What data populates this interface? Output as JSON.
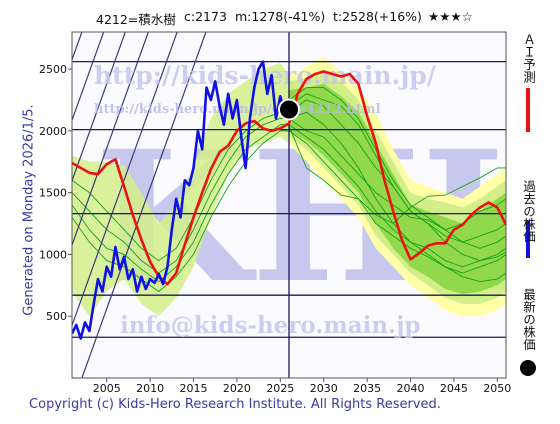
{
  "header": {
    "code": "4212=積水樹",
    "current": "c:2173",
    "min": "m:1278(-41%)",
    "target": "t:2528(+16%)",
    "stars": "★★★☆"
  },
  "generated": "Generated on Monday 2026/1/5.",
  "footer": "Copyright (c) Kids-Hero Research Institute. All Rights Reserved.",
  "watermarks": {
    "url": "http://kids-hero.main.jp/",
    "page": "http://kids-hero.main.jp/code4212.html",
    "email": "info@kids-hero.main.jp",
    "logo": "KHI"
  },
  "legend": [
    {
      "label": "ＡＩ予測",
      "kind": "line",
      "color": "#ee1111"
    },
    {
      "label": "過去の株価",
      "kind": "line",
      "color": "#1111ee"
    },
    {
      "label": "最新の株価",
      "kind": "dot",
      "color": "#000000"
    }
  ],
  "colors": {
    "ai": "#ee1111",
    "past": "#1010e8",
    "band_outer": "#ffffa8",
    "band_mid": "#d2ee88",
    "band_inner": "#92d84c",
    "projection": "#15a215",
    "grid": "#1a1a5e",
    "trend": "#3a3a7a"
  },
  "chart_data": {
    "type": "line",
    "xlim": [
      2001,
      2051
    ],
    "ylim": [
      0,
      2800
    ],
    "x_ticks": [
      2005,
      2010,
      2015,
      2020,
      2025,
      2030,
      2035,
      2040,
      2045,
      2050
    ],
    "y_ticks": [
      500,
      1000,
      1500,
      2000,
      2500
    ],
    "h_levels": [
      330,
      670,
      1330,
      2010,
      2560
    ],
    "v_marker": 2026,
    "latest": {
      "x": 2026,
      "y": 2173
    },
    "trend_slope": 196,
    "trend_intercepts": [
      -392420,
      -391770,
      -391120,
      -390600,
      -390110,
      -389620,
      -389050
    ],
    "series": [
      {
        "name": "ＡＩ予測",
        "role": "ai",
        "x": [
          2001,
          2002,
          2003,
          2004,
          2005,
          2006,
          2007,
          2008,
          2009,
          2010,
          2011,
          2012,
          2013,
          2014,
          2015,
          2016,
          2017,
          2018,
          2019,
          2020,
          2021,
          2022,
          2023,
          2024,
          2025,
          2026,
          2027,
          2028,
          2029,
          2030,
          2031,
          2032,
          2033,
          2034,
          2035,
          2036,
          2037,
          2038,
          2039,
          2040,
          2041,
          2042,
          2043,
          2044,
          2045,
          2046,
          2047,
          2048,
          2049,
          2050,
          2051
        ],
        "y": [
          1740,
          1700,
          1660,
          1650,
          1730,
          1770,
          1550,
          1320,
          1120,
          940,
          820,
          760,
          850,
          1080,
          1300,
          1500,
          1690,
          1830,
          1880,
          2000,
          2060,
          2080,
          2020,
          2000,
          2020,
          2060,
          2300,
          2420,
          2460,
          2480,
          2460,
          2440,
          2460,
          2380,
          2120,
          1900,
          1600,
          1350,
          1120,
          960,
          1010,
          1070,
          1090,
          1090,
          1200,
          1240,
          1320,
          1380,
          1420,
          1380,
          1240
        ]
      },
      {
        "name": "過去の株価",
        "role": "past",
        "x": [
          2001,
          2001.5,
          2002,
          2002.5,
          2003,
          2003.5,
          2004,
          2004.5,
          2005,
          2005.5,
          2006,
          2006.5,
          2007,
          2007.5,
          2008,
          2008.5,
          2009,
          2009.5,
          2010,
          2010.5,
          2011,
          2011.5,
          2012,
          2012.5,
          2013,
          2013.5,
          2014,
          2014.5,
          2015,
          2015.5,
          2016,
          2016.5,
          2017,
          2017.5,
          2018,
          2018.5,
          2019,
          2019.5,
          2020,
          2020.5,
          2021,
          2021.5,
          2022,
          2022.5,
          2023,
          2023.5,
          2024,
          2024.5,
          2025,
          2025.5,
          2026
        ],
        "y": [
          360,
          430,
          320,
          450,
          380,
          600,
          800,
          700,
          900,
          820,
          1060,
          880,
          980,
          800,
          880,
          700,
          820,
          720,
          800,
          770,
          840,
          760,
          900,
          1200,
          1450,
          1300,
          1600,
          1560,
          1700,
          2000,
          1850,
          2350,
          2250,
          2400,
          2200,
          2050,
          2300,
          2100,
          2250,
          1950,
          1700,
          2100,
          2350,
          2500,
          2560,
          2300,
          2450,
          2100,
          2280,
          2150,
          2173
        ]
      }
    ],
    "band": {
      "x": [
        2026,
        2028,
        2030,
        2032,
        2034,
        2036,
        2038,
        2040,
        2042,
        2044,
        2046,
        2048,
        2050,
        2051
      ],
      "outer_hi": [
        2450,
        2520,
        2600,
        2480,
        2350,
        2150,
        1850,
        1600,
        1550,
        1500,
        1450,
        1550,
        1650,
        1700
      ],
      "outer_lo": [
        1900,
        1750,
        1600,
        1450,
        1300,
        1050,
        900,
        750,
        650,
        550,
        500,
        500,
        550,
        600
      ],
      "mid_hi": [
        2400,
        2430,
        2500,
        2400,
        2250,
        2000,
        1750,
        1500,
        1450,
        1420,
        1380,
        1450,
        1550,
        1600
      ],
      "mid_lo": [
        1950,
        1850,
        1700,
        1550,
        1400,
        1150,
        1000,
        850,
        750,
        650,
        600,
        600,
        650,
        700
      ],
      "inner_hi": [
        2330,
        2350,
        2380,
        2280,
        2150,
        1900,
        1650,
        1400,
        1350,
        1300,
        1250,
        1350,
        1450,
        1500
      ],
      "inner_lo": [
        2000,
        1920,
        1800,
        1650,
        1500,
        1250,
        1050,
        900,
        820,
        720,
        680,
        700,
        750,
        800
      ]
    },
    "history_band": {
      "x": [
        2001,
        2003,
        2005,
        2007,
        2009,
        2011,
        2013,
        2015,
        2017,
        2019,
        2021,
        2023,
        2025,
        2026
      ],
      "hi": [
        1800,
        1750,
        1750,
        1720,
        1500,
        1250,
        1400,
        1700,
        2100,
        2300,
        2400,
        2500,
        2550,
        2450
      ],
      "lo": [
        700,
        500,
        700,
        800,
        600,
        500,
        650,
        900,
        1300,
        1650,
        1850,
        1900,
        1950,
        1900
      ]
    },
    "projections": [
      [
        2040,
        1700,
        1600,
        1480,
        1450,
        1320,
        1250,
        1380,
        1470,
        1480,
        1550,
        1620,
        1700,
        1700
      ],
      [
        2100,
        2000,
        1950,
        1800,
        1650,
        1500,
        1400,
        1300,
        1280,
        1200,
        1250,
        1350,
        1400,
        1450
      ],
      [
        2150,
        2250,
        2200,
        2050,
        1900,
        1700,
        1550,
        1350,
        1250,
        1150,
        1100,
        1150,
        1200,
        1250
      ],
      [
        2250,
        2350,
        2350,
        2250,
        2100,
        1850,
        1600,
        1400,
        1300,
        1200,
        1100,
        1050,
        1100,
        1150
      ],
      [
        2100,
        2150,
        2050,
        1900,
        1700,
        1450,
        1250,
        1100,
        1050,
        950,
        900,
        950,
        1000,
        1050
      ],
      [
        2000,
        1900,
        1750,
        1600,
        1450,
        1250,
        1150,
        1050,
        980,
        900,
        850,
        900,
        950,
        1000
      ],
      [
        2200,
        2300,
        2250,
        2200,
        2050,
        1800,
        1550,
        1350,
        1250,
        1100,
        1000,
        950,
        980,
        1020
      ],
      [
        2050,
        1950,
        1850,
        1700,
        1550,
        1350,
        1200,
        1100,
        1000,
        900,
        820,
        780,
        800,
        850
      ]
    ],
    "history_projections": [
      [
        1600,
        1500,
        1350,
        1200,
        1050,
        950,
        1050,
        1300,
        1600,
        1850,
        2000,
        2100,
        2150,
        2150
      ],
      [
        1500,
        1350,
        1200,
        1100,
        950,
        850,
        950,
        1200,
        1500,
        1750,
        1950,
        2050,
        2100,
        2100
      ],
      [
        1400,
        1200,
        1050,
        1000,
        880,
        780,
        900,
        1100,
        1400,
        1650,
        1850,
        1950,
        2050,
        2050
      ],
      [
        1300,
        1100,
        950,
        900,
        800,
        700,
        820,
        1000,
        1300,
        1550,
        1750,
        1900,
        2000,
        2000
      ]
    ]
  }
}
